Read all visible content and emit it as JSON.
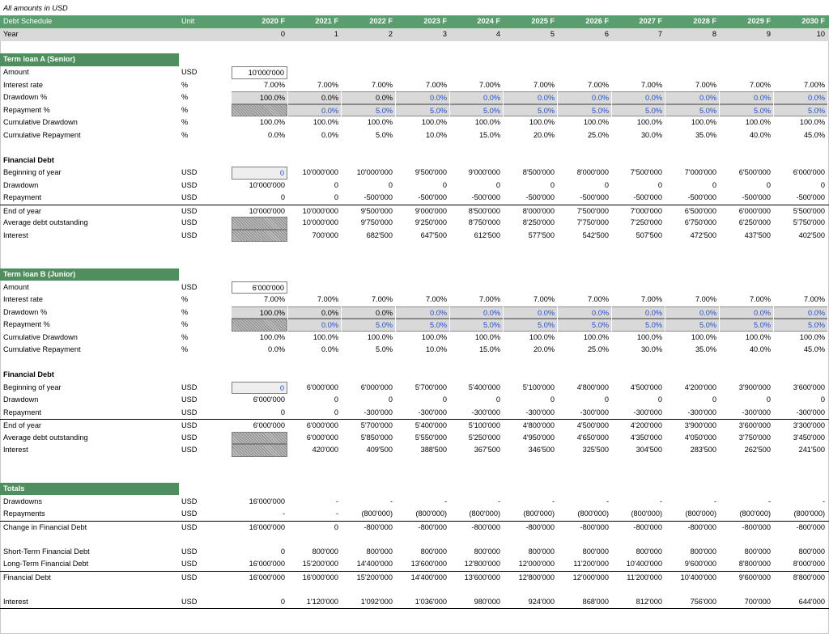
{
  "note": "All amounts in USD",
  "header": {
    "label": "Debt Schedule",
    "unit": "Unit",
    "years": [
      "2020 F",
      "2021 F",
      "2022 F",
      "2023 F",
      "2024 F",
      "2025 F",
      "2026 F",
      "2027 F",
      "2028 F",
      "2029 F",
      "2030 F"
    ]
  },
  "year_row": {
    "label": "Year",
    "values": [
      "0",
      "1",
      "2",
      "3",
      "4",
      "5",
      "6",
      "7",
      "8",
      "9",
      "10"
    ]
  },
  "loan_a": {
    "title": "Term loan A (Senior)",
    "amount": {
      "label": "Amount",
      "unit": "USD",
      "values": [
        "10'000'000"
      ]
    },
    "interest_rate": {
      "label": "Interest rate",
      "unit": "%",
      "values": [
        "7.00%",
        "7.00%",
        "7.00%",
        "7.00%",
        "7.00%",
        "7.00%",
        "7.00%",
        "7.00%",
        "7.00%",
        "7.00%",
        "7.00%"
      ]
    },
    "drawdown_pct": {
      "label": "Drawdown %",
      "unit": "%",
      "values": [
        "100.0%",
        "0.0%",
        "0.0%",
        "0.0%",
        "0.0%",
        "0.0%",
        "0.0%",
        "0.0%",
        "0.0%",
        "0.0%",
        "0.0%"
      ]
    },
    "repayment_pct": {
      "label": "Repayment %",
      "unit": "%",
      "values": [
        "",
        "0.0%",
        "5.0%",
        "5.0%",
        "5.0%",
        "5.0%",
        "5.0%",
        "5.0%",
        "5.0%",
        "5.0%",
        "5.0%"
      ]
    },
    "cum_drawdown": {
      "label": "Cumulative Drawdown",
      "unit": "%",
      "values": [
        "100.0%",
        "100.0%",
        "100.0%",
        "100.0%",
        "100.0%",
        "100.0%",
        "100.0%",
        "100.0%",
        "100.0%",
        "100.0%",
        "100.0%"
      ]
    },
    "cum_repayment": {
      "label": "Cumulative Repayment",
      "unit": "%",
      "values": [
        "0.0%",
        "0.0%",
        "5.0%",
        "10.0%",
        "15.0%",
        "20.0%",
        "25.0%",
        "30.0%",
        "35.0%",
        "40.0%",
        "45.0%"
      ]
    },
    "fin_debt_title": "Financial Debt",
    "boy": {
      "label": "Beginning of year",
      "unit": "USD",
      "values": [
        "0",
        "10'000'000",
        "10'000'000",
        "9'500'000",
        "9'000'000",
        "8'500'000",
        "8'000'000",
        "7'500'000",
        "7'000'000",
        "6'500'000",
        "6'000'000"
      ]
    },
    "drawdown": {
      "label": "Drawdown",
      "unit": "USD",
      "values": [
        "10'000'000",
        "0",
        "0",
        "0",
        "0",
        "0",
        "0",
        "0",
        "0",
        "0",
        "0"
      ]
    },
    "repayment": {
      "label": "Repayment",
      "unit": "USD",
      "values": [
        "0",
        "0",
        "-500'000",
        "-500'000",
        "-500'000",
        "-500'000",
        "-500'000",
        "-500'000",
        "-500'000",
        "-500'000",
        "-500'000"
      ]
    },
    "eoy": {
      "label": "End of year",
      "unit": "USD",
      "values": [
        "10'000'000",
        "10'000'000",
        "9'500'000",
        "9'000'000",
        "8'500'000",
        "8'000'000",
        "7'500'000",
        "7'000'000",
        "6'500'000",
        "6'000'000",
        "5'500'000"
      ]
    },
    "avg_debt": {
      "label": "Average debt outstanding",
      "unit": "USD",
      "values": [
        "",
        "10'000'000",
        "9'750'000",
        "9'250'000",
        "8'750'000",
        "8'250'000",
        "7'750'000",
        "7'250'000",
        "6'750'000",
        "6'250'000",
        "5'750'000"
      ]
    },
    "interest": {
      "label": "Interest",
      "unit": "USD",
      "values": [
        "",
        "700'000",
        "682'500",
        "647'500",
        "612'500",
        "577'500",
        "542'500",
        "507'500",
        "472'500",
        "437'500",
        "402'500"
      ]
    }
  },
  "loan_b": {
    "title": "Term loan B (Junior)",
    "amount": {
      "label": "Amount",
      "unit": "USD",
      "values": [
        "6'000'000"
      ]
    },
    "interest_rate": {
      "label": "Interest rate",
      "unit": "%",
      "values": [
        "7.00%",
        "7.00%",
        "7.00%",
        "7.00%",
        "7.00%",
        "7.00%",
        "7.00%",
        "7.00%",
        "7.00%",
        "7.00%",
        "7.00%"
      ]
    },
    "drawdown_pct": {
      "label": "Drawdown %",
      "unit": "%",
      "values": [
        "100.0%",
        "0.0%",
        "0.0%",
        "0.0%",
        "0.0%",
        "0.0%",
        "0.0%",
        "0.0%",
        "0.0%",
        "0.0%",
        "0.0%"
      ]
    },
    "repayment_pct": {
      "label": "Repayment %",
      "unit": "%",
      "values": [
        "",
        "0.0%",
        "5.0%",
        "5.0%",
        "5.0%",
        "5.0%",
        "5.0%",
        "5.0%",
        "5.0%",
        "5.0%",
        "5.0%"
      ]
    },
    "cum_drawdown": {
      "label": "Cumulative Drawdown",
      "unit": "%",
      "values": [
        "100.0%",
        "100.0%",
        "100.0%",
        "100.0%",
        "100.0%",
        "100.0%",
        "100.0%",
        "100.0%",
        "100.0%",
        "100.0%",
        "100.0%"
      ]
    },
    "cum_repayment": {
      "label": "Cumulative Repayment",
      "unit": "%",
      "values": [
        "0.0%",
        "0.0%",
        "5.0%",
        "10.0%",
        "15.0%",
        "20.0%",
        "25.0%",
        "30.0%",
        "35.0%",
        "40.0%",
        "45.0%"
      ]
    },
    "fin_debt_title": "Financial Debt",
    "boy": {
      "label": "Beginning of year",
      "unit": "USD",
      "values": [
        "0",
        "6'000'000",
        "6'000'000",
        "5'700'000",
        "5'400'000",
        "5'100'000",
        "4'800'000",
        "4'500'000",
        "4'200'000",
        "3'900'000",
        "3'600'000"
      ]
    },
    "drawdown": {
      "label": "Drawdown",
      "unit": "USD",
      "values": [
        "6'000'000",
        "0",
        "0",
        "0",
        "0",
        "0",
        "0",
        "0",
        "0",
        "0",
        "0"
      ]
    },
    "repayment": {
      "label": "Repayment",
      "unit": "USD",
      "values": [
        "0",
        "0",
        "-300'000",
        "-300'000",
        "-300'000",
        "-300'000",
        "-300'000",
        "-300'000",
        "-300'000",
        "-300'000",
        "-300'000"
      ]
    },
    "eoy": {
      "label": "End of year",
      "unit": "USD",
      "values": [
        "6'000'000",
        "6'000'000",
        "5'700'000",
        "5'400'000",
        "5'100'000",
        "4'800'000",
        "4'500'000",
        "4'200'000",
        "3'900'000",
        "3'600'000",
        "3'300'000"
      ]
    },
    "avg_debt": {
      "label": "Average debt outstanding",
      "unit": "USD",
      "values": [
        "",
        "6'000'000",
        "5'850'000",
        "5'550'000",
        "5'250'000",
        "4'950'000",
        "4'650'000",
        "4'350'000",
        "4'050'000",
        "3'750'000",
        "3'450'000"
      ]
    },
    "interest": {
      "label": "Interest",
      "unit": "USD",
      "values": [
        "",
        "420'000",
        "409'500",
        "388'500",
        "367'500",
        "346'500",
        "325'500",
        "304'500",
        "283'500",
        "262'500",
        "241'500"
      ]
    }
  },
  "totals": {
    "title": "Totals",
    "drawdowns": {
      "label": "Drawdowns",
      "unit": "USD",
      "values": [
        "16'000'000",
        "-",
        "-",
        "-",
        "-",
        "-",
        "-",
        "-",
        "-",
        "-",
        "-"
      ]
    },
    "repayments": {
      "label": "Repayments",
      "unit": "USD",
      "values": [
        "-",
        "-",
        "(800'000)",
        "(800'000)",
        "(800'000)",
        "(800'000)",
        "(800'000)",
        "(800'000)",
        "(800'000)",
        "(800'000)",
        "(800'000)"
      ]
    },
    "change": {
      "label": "Change in Financial Debt",
      "unit": "USD",
      "values": [
        "16'000'000",
        "0",
        "-800'000",
        "-800'000",
        "-800'000",
        "-800'000",
        "-800'000",
        "-800'000",
        "-800'000",
        "-800'000",
        "-800'000"
      ]
    },
    "short_term": {
      "label": "Short-Term Financial Debt",
      "unit": "USD",
      "values": [
        "0",
        "800'000",
        "800'000",
        "800'000",
        "800'000",
        "800'000",
        "800'000",
        "800'000",
        "800'000",
        "800'000",
        "800'000"
      ]
    },
    "long_term": {
      "label": "Long-Term Financial Debt",
      "unit": "USD",
      "values": [
        "16'000'000",
        "15'200'000",
        "14'400'000",
        "13'600'000",
        "12'800'000",
        "12'000'000",
        "11'200'000",
        "10'400'000",
        "9'600'000",
        "8'800'000",
        "8'000'000"
      ]
    },
    "financial_debt": {
      "label": "Financial Debt",
      "unit": "USD",
      "values": [
        "16'000'000",
        "16'000'000",
        "15'200'000",
        "14'400'000",
        "13'600'000",
        "12'800'000",
        "12'000'000",
        "11'200'000",
        "10'400'000",
        "9'600'000",
        "8'800'000"
      ]
    },
    "interest": {
      "label": "Interest",
      "unit": "USD",
      "values": [
        "0",
        "1'120'000",
        "1'092'000",
        "1'036'000",
        "980'000",
        "924'000",
        "868'000",
        "812'000",
        "756'000",
        "700'000",
        "644'000"
      ]
    }
  }
}
